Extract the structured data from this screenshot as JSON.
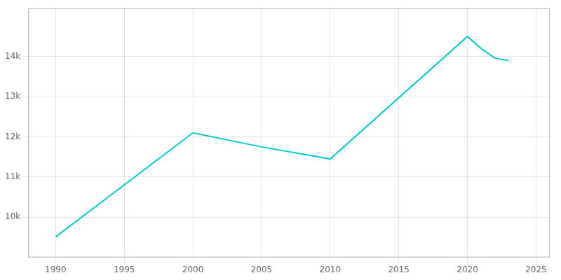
{
  "chart_data": {
    "type": "line",
    "x": [
      1990,
      2000,
      2005,
      2010,
      2020,
      2021,
      2022,
      2023
    ],
    "values": [
      9510,
      12100,
      11750,
      11450,
      14500,
      14200,
      13960,
      13900
    ],
    "color": "#00CED1",
    "xlim": [
      1988,
      2026
    ],
    "ylim": [
      9000,
      15200
    ],
    "xticks": [
      1990,
      1995,
      2000,
      2005,
      2010,
      2015,
      2020,
      2025
    ],
    "yticks": [
      {
        "value": 10000,
        "label": "10k"
      },
      {
        "value": 11000,
        "label": "11k"
      },
      {
        "value": 12000,
        "label": "12k"
      },
      {
        "value": 13000,
        "label": "13k"
      },
      {
        "value": 14000,
        "label": "14k"
      }
    ],
    "grid": true
  }
}
